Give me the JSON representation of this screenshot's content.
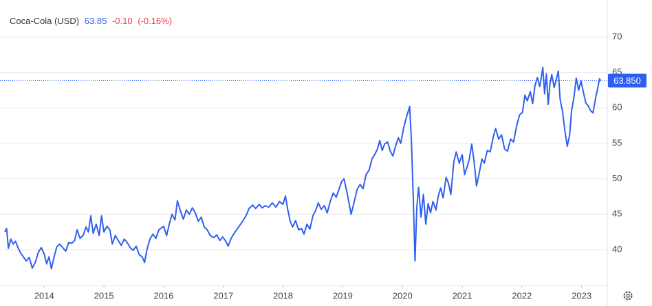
{
  "chart_data": {
    "type": "line",
    "series": [
      {
        "name": "Coca-Cola (USD)",
        "color": "#2f5ff0",
        "values": [
          42.5,
          43.0,
          40.2,
          41.5,
          40.8,
          41.2,
          40.3,
          39.6,
          39.0,
          38.4,
          38.9,
          37.4,
          38.2,
          39.6,
          40.3,
          39.4,
          38.0,
          39.0,
          37.3,
          38.8,
          40.4,
          40.8,
          40.3,
          39.8,
          41.0,
          40.9,
          41.3,
          42.8,
          41.6,
          42.0,
          43.2,
          42.5,
          44.8,
          42.3,
          43.6,
          42.0,
          44.8,
          42.5,
          43.3,
          42.8,
          40.8,
          42.0,
          41.3,
          40.6,
          41.5,
          41.0,
          40.3,
          39.9,
          40.5,
          39.3,
          39.0,
          38.2,
          40.0,
          41.5,
          42.2,
          41.6,
          42.8,
          43.3,
          42.0,
          43.8,
          45.0,
          44.2,
          46.9,
          45.5,
          44.3,
          45.6,
          45.0,
          45.9,
          45.2,
          44.0,
          44.6,
          43.2,
          42.8,
          42.0,
          41.7,
          42.1,
          41.3,
          41.8,
          41.2,
          40.5,
          41.6,
          42.3,
          42.9,
          43.5,
          44.1,
          44.8,
          45.8,
          46.3,
          45.8,
          46.4,
          45.9,
          46.2,
          46.0,
          46.6,
          46.0,
          46.8,
          46.4,
          47.6,
          45.6,
          44.0,
          43.2,
          44.1,
          42.8,
          43.0,
          42.2,
          43.6,
          42.9,
          44.8,
          45.6,
          46.6,
          45.7,
          46.2,
          45.2,
          46.8,
          48.0,
          47.4,
          48.6,
          49.6,
          50.0,
          48.5,
          46.8,
          45.0,
          46.7,
          48.5,
          49.2,
          48.6,
          50.6,
          51.2,
          52.8,
          53.5,
          54.2,
          55.4,
          54.0,
          54.9,
          55.2,
          53.8,
          53.2,
          54.5,
          55.8,
          55.0,
          57.2,
          58.8,
          60.2,
          55.3,
          47.5,
          38.4,
          46.0,
          48.8,
          44.6,
          47.8,
          43.6,
          46.5,
          45.2,
          46.8,
          45.6,
          47.6,
          48.7,
          47.3,
          50.2,
          49.4,
          47.8,
          52.4,
          53.8,
          52.2,
          53.4,
          50.6,
          51.6,
          52.8,
          54.9,
          52.4,
          49.0,
          50.6,
          52.8,
          52.2,
          54.0,
          53.8,
          55.9,
          57.1,
          55.6,
          56.2,
          54.2,
          53.9,
          55.6,
          55.2,
          57.4,
          59.0,
          59.4,
          61.8,
          61.0,
          62.3,
          60.6,
          63.2,
          64.3,
          63.0,
          65.7,
          62.0,
          64.8,
          60.5,
          63.4,
          64.7,
          62.9,
          63.8,
          65.2,
          61.2,
          59.5,
          56.8,
          54.6,
          56.2,
          59.5,
          61.4,
          64.2,
          62.5,
          63.8,
          62.2,
          60.7,
          60.3,
          59.6,
          59.3,
          61.2,
          62.8,
          64.1,
          63.85
        ]
      }
    ],
    "x": [
      2013.34,
      2013.37,
      2013.4,
      2013.44,
      2013.48,
      2013.52,
      2013.56,
      2013.6,
      2013.65,
      2013.7,
      2013.75,
      2013.8,
      2013.85,
      2013.9,
      2013.95,
      2014.0,
      2014.04,
      2014.08,
      2014.12,
      2014.16,
      2014.21,
      2014.26,
      2014.31,
      2014.36,
      2014.41,
      2014.46,
      2014.51,
      2014.55,
      2014.6,
      2014.65,
      2014.7,
      2014.74,
      2014.78,
      2014.82,
      2014.87,
      2014.92,
      2014.96,
      2015.0,
      2015.05,
      2015.1,
      2015.14,
      2015.19,
      2015.24,
      2015.29,
      2015.34,
      2015.39,
      2015.44,
      2015.49,
      2015.54,
      2015.59,
      2015.64,
      2015.68,
      2015.72,
      2015.77,
      2015.82,
      2015.87,
      2015.92,
      2016.0,
      2016.05,
      2016.1,
      2016.14,
      2016.19,
      2016.23,
      2016.28,
      2016.33,
      2016.38,
      2016.43,
      2016.48,
      2016.53,
      2016.58,
      2016.63,
      2016.68,
      2016.73,
      2016.78,
      2016.84,
      2016.89,
      2016.94,
      2016.99,
      2017.04,
      2017.08,
      2017.13,
      2017.18,
      2017.23,
      2017.28,
      2017.33,
      2017.38,
      2017.43,
      2017.49,
      2017.54,
      2017.6,
      2017.65,
      2017.7,
      2017.76,
      2017.82,
      2017.88,
      2017.94,
      2018.0,
      2018.04,
      2018.08,
      2018.12,
      2018.16,
      2018.21,
      2018.26,
      2018.31,
      2018.35,
      2018.4,
      2018.45,
      2018.5,
      2018.55,
      2018.59,
      2018.64,
      2018.69,
      2018.74,
      2018.79,
      2018.84,
      2018.89,
      2018.94,
      2018.98,
      2019.02,
      2019.06,
      2019.1,
      2019.14,
      2019.19,
      2019.24,
      2019.29,
      2019.34,
      2019.39,
      2019.44,
      2019.49,
      2019.54,
      2019.58,
      2019.62,
      2019.66,
      2019.7,
      2019.75,
      2019.8,
      2019.84,
      2019.88,
      2019.93,
      2019.97,
      2020.02,
      2020.07,
      2020.12,
      2020.15,
      2020.18,
      2020.21,
      2020.24,
      2020.27,
      2020.31,
      2020.35,
      2020.39,
      2020.43,
      2020.47,
      2020.51,
      2020.56,
      2020.6,
      2020.64,
      2020.68,
      2020.73,
      2020.77,
      2020.81,
      2020.86,
      2020.9,
      2020.95,
      2021.0,
      2021.04,
      2021.08,
      2021.12,
      2021.16,
      2021.2,
      2021.24,
      2021.28,
      2021.33,
      2021.37,
      2021.42,
      2021.47,
      2021.52,
      2021.56,
      2021.61,
      2021.66,
      2021.71,
      2021.76,
      2021.81,
      2021.86,
      2021.91,
      2021.96,
      2022.01,
      2022.05,
      2022.09,
      2022.14,
      2022.18,
      2022.22,
      2022.26,
      2022.3,
      2022.35,
      2022.38,
      2022.41,
      2022.44,
      2022.47,
      2022.5,
      2022.54,
      2022.57,
      2022.61,
      2022.64,
      2022.68,
      2022.72,
      2022.76,
      2022.8,
      2022.83,
      2022.87,
      2022.91,
      2022.95,
      2022.99,
      2023.03,
      2023.07,
      2023.11,
      2023.15,
      2023.19,
      2023.23,
      2023.27,
      2023.3,
      2023.32
    ],
    "xlim": [
      2013.34,
      2023.43
    ],
    "xticks": [
      2014,
      2015,
      2016,
      2017,
      2018,
      2019,
      2020,
      2021,
      2022,
      2023
    ],
    "ylim": [
      35,
      75
    ],
    "yticks": [
      40,
      45,
      50,
      55,
      60,
      65,
      70
    ],
    "grid": true,
    "last_price": {
      "value": 63.85,
      "label": "63.850"
    },
    "change": "-0.10",
    "change_pct": "(-0.16%)",
    "change_color": "#f23645"
  }
}
